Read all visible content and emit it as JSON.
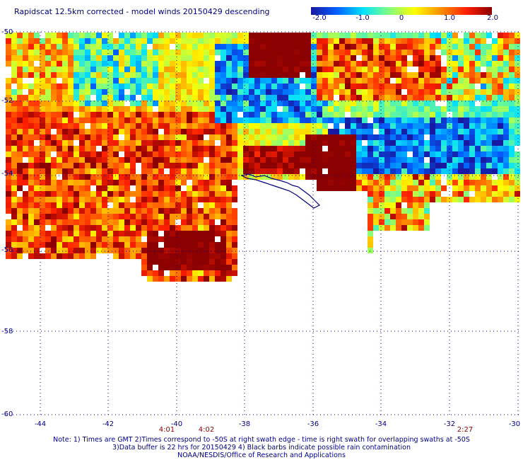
{
  "title": "Rapidscat 12.5km corrected - model winds 20150429 descending",
  "colorbar": {
    "labels": [
      "-2.0",
      "-1.0",
      "0",
      "1.0",
      "2.0"
    ],
    "stops": [
      "#1818a0",
      "#0060ff",
      "#00e0ff",
      "#80ff80",
      "#ffff00",
      "#ff9000",
      "#ff2000",
      "#8b0000"
    ]
  },
  "y_labels": [
    "-50",
    "-52",
    "-54",
    "-56",
    "-58",
    "-60"
  ],
  "x_labels": [
    "-44",
    "-42",
    "-40",
    "-38",
    "-36",
    "-34",
    "-32",
    "-30"
  ],
  "time_labels": [
    "4:01",
    "4:02",
    "2:27"
  ],
  "notes": [
    "Note: 1) Times are GMT 2)Times correspond to -50S at right swath edge - time is right swath for overlapping swaths at -50S",
    "3)Data buffer is 22 hrs for 20150429 4) Black barbs indicate possible rain contamination",
    "NOAA/NESDIS/Office of Research and Applications"
  ]
}
